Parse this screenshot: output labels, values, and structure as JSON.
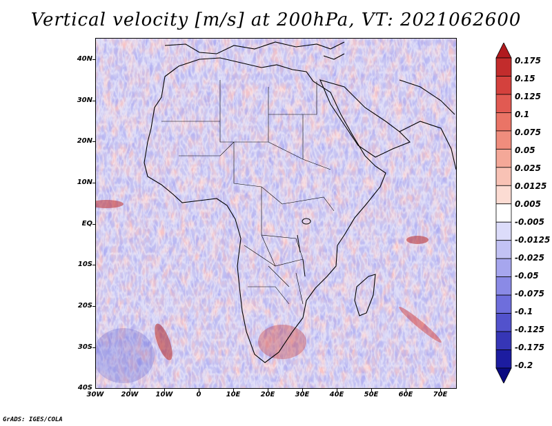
{
  "title": "Vertical velocity [m/s] at 200hPa, VT: 2021062600",
  "latitude_labels": [
    "40N",
    "30N",
    "20N",
    "10N",
    "EQ",
    "10S",
    "20S",
    "30S",
    "40S"
  ],
  "longitude_labels": [
    "30W",
    "20W",
    "10W",
    "0",
    "10E",
    "20E",
    "30E",
    "40E",
    "50E",
    "60E",
    "70E"
  ],
  "colorbar": {
    "labels": [
      "0.175",
      "0.15",
      "0.125",
      "0.1",
      "0.075",
      "0.05",
      "0.025",
      "0.0125",
      "0.005",
      "-0.005",
      "-0.0125",
      "-0.025",
      "-0.05",
      "-0.075",
      "-0.1",
      "-0.125",
      "-0.175",
      "-0.2"
    ],
    "colors": [
      "#b01a1e",
      "#c22c2c",
      "#d4413d",
      "#e15a52",
      "#ea7466",
      "#f08d7d",
      "#f4a898",
      "#f8c2b5",
      "#fcdcd3",
      "#ffffff",
      "#dcdcfa",
      "#c2c2f4",
      "#a6a6ee",
      "#8a8ae6",
      "#6e6edc",
      "#5252cc",
      "#3636b6",
      "#1c1ca0",
      "#0a0a80"
    ]
  },
  "credit": "GrADS: IGES/COLA"
}
